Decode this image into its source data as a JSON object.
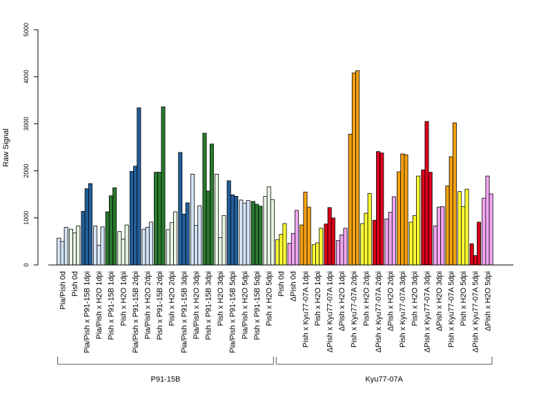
{
  "chart_data": {
    "type": "bar",
    "ylabel": "Raw Signal",
    "ylim": [
      0,
      5000
    ],
    "yticks": [
      0,
      1000,
      2000,
      3000,
      4000,
      5000
    ],
    "grid": false,
    "groups": [
      {
        "label": "P91-15B",
        "categories": [
          "Pia/Pish 0d",
          "Pish 0d",
          "Pia/Pish x P91-15B 1dpi",
          "Pia/Pish x H2O 1dpi",
          "Pish x P91-15B 1dpi",
          "Pish x H2O 1dpi",
          "Pia/Pish x P91-15B 2dpi",
          "Pia/Pish x H2O 2dpi",
          "Pish x P91-15B 2dpi",
          "Pish x H2O 2dpi",
          "Pia/Pish x P91-15B 3dpi",
          "Pia/Pish x H2O 3dpi",
          "Pish x P91-15B 3dpi",
          "Pish x H2O 3dpi",
          "Pia/Pish x P91-15B 5dpi",
          "Pia/Pish x H2O 5dpi",
          "Pish x P91-15B 5dpi",
          "Pish x H2O 5dpi"
        ]
      },
      {
        "label": "Kyu77-07A",
        "categories": [
          "Pish 0d",
          "ΔPish 0d",
          "Pish x Kyu77-07A 1dpi",
          "Pish x H2O 1dpi",
          "ΔPish x Kyu77-07A 1dpi",
          "ΔPish x H2O 1dpi",
          "Pish x Kyu77-07A 2dpi",
          "Pish x H2O 2dpi",
          "ΔPish x Kyu77-07A 2dpi",
          "ΔPish x H2O 2dpi",
          "Pish x Kyu77-07A 3dpi",
          "Pish x H2O 3dpi",
          "ΔPish x Kyu77-07A 3dpi",
          "ΔPish x H2O 3dpi",
          "Pish x Kyu77-07A 5dpi",
          "Pish x H2O 5dpi",
          "ΔPish x Kyu77-07A 5dpi",
          "ΔPish x H2O 5dpi"
        ]
      }
    ],
    "categories": [
      "Pia/Pish 0d",
      "Pish 0d",
      "Pia/Pish x P91-15B 1dpi",
      "Pia/Pish x H2O 1dpi",
      "Pish x P91-15B 1dpi",
      "Pish x H2O 1dpi",
      "Pia/Pish x P91-15B 2dpi",
      "Pia/Pish x H2O 2dpi",
      "Pish x P91-15B 2dpi",
      "Pish x H2O 2dpi",
      "Pia/Pish x P91-15B 3dpi",
      "Pia/Pish x H2O 3dpi",
      "Pish x P91-15B 3dpi",
      "Pish x H2O 3dpi",
      "Pia/Pish x P91-15B 5dpi",
      "Pia/Pish x H2O 5dpi",
      "Pish x P91-15B 5dpi",
      "Pish x H2O 5dpi",
      "Pish 0d",
      "ΔPish 0d",
      "Pish x Kyu77-07A 1dpi",
      "Pish x H2O 1dpi",
      "ΔPish x Kyu77-07A 1dpi",
      "ΔPish x H2O 1dpi",
      "Pish x Kyu77-07A 2dpi",
      "Pish x H2O 2dpi",
      "ΔPish x Kyu77-07A 2dpi",
      "ΔPish x H2O 2dpi",
      "Pish x Kyu77-07A 3dpi",
      "Pish x H2O 3dpi",
      "ΔPish x Kyu77-07A 3dpi",
      "ΔPish x H2O 3dpi",
      "Pish x Kyu77-07A 5dpi",
      "Pish x H2O 5dpi",
      "ΔPish x Kyu77-07A 5dpi",
      "ΔPish x H2O 5dpi"
    ],
    "replicates": [
      [
        570,
        500,
        800
      ],
      [
        760,
        680,
        830
      ],
      [
        1140,
        1620,
        1730
      ],
      [
        830,
        420,
        810
      ],
      [
        1130,
        1470,
        1640
      ],
      [
        710,
        550,
        850
      ],
      [
        1990,
        2100,
        3340
      ],
      [
        760,
        800,
        910
      ],
      [
        1970,
        1970,
        3360
      ],
      [
        750,
        900,
        1130
      ],
      [
        2390,
        1080,
        1320
      ],
      [
        1930,
        840,
        1260
      ],
      [
        2800,
        1570,
        2570
      ],
      [
        1930,
        580,
        1050
      ],
      [
        1790,
        1490,
        1460
      ],
      [
        1380,
        1310,
        1370
      ],
      [
        1350,
        1290,
        1250
      ],
      [
        1460,
        1660,
        1390
      ],
      [
        540,
        650,
        880
      ],
      [
        460,
        670,
        1160
      ],
      [
        850,
        1550,
        1230
      ],
      [
        430,
        470,
        780
      ],
      [
        870,
        1220,
        1000
      ],
      [
        520,
        640,
        780
      ],
      [
        2780,
        4080,
        4130
      ],
      [
        880,
        1100,
        1520
      ],
      [
        950,
        2410,
        2380
      ],
      [
        980,
        1120,
        1450
      ],
      [
        1980,
        2360,
        2340
      ],
      [
        910,
        1050,
        1890
      ],
      [
        2020,
        3050,
        1970
      ],
      [
        830,
        1230,
        1240
      ],
      [
        1680,
        2300,
        3020
      ],
      [
        1560,
        1240,
        1610
      ],
      [
        450,
        200,
        910
      ],
      [
        1420,
        1890,
        1510
      ]
    ],
    "colors": [
      "#d4e4f7",
      "#e8f5e4",
      "#235f9c",
      "#d4e4f7",
      "#2a7a2e",
      "#e8f5e4",
      "#235f9c",
      "#d4e4f7",
      "#2a7a2e",
      "#e8f5e4",
      "#235f9c",
      "#d4e4f7",
      "#2a7a2e",
      "#e8f5e4",
      "#235f9c",
      "#d4e4f7",
      "#2a7a2e",
      "#e8f5e4",
      "#ffff33",
      "#f3a6f3",
      "#f5a10f",
      "#ffff33",
      "#d9001b",
      "#f3a6f3",
      "#f5a10f",
      "#ffff33",
      "#d9001b",
      "#f3a6f3",
      "#f5a10f",
      "#ffff33",
      "#d9001b",
      "#f3a6f3",
      "#f5a10f",
      "#ffff33",
      "#d9001b",
      "#f3a6f3"
    ]
  }
}
